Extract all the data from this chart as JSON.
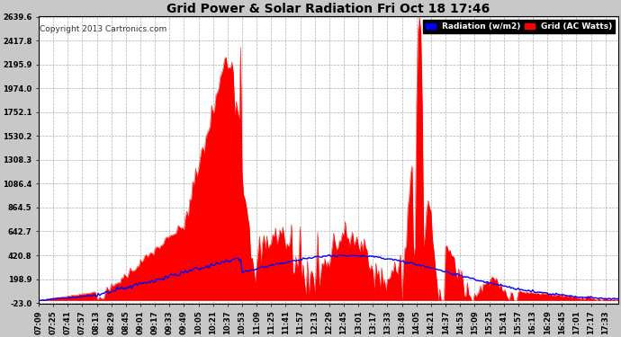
{
  "title": "Grid Power & Solar Radiation Fri Oct 18 17:46",
  "copyright": "Copyright 2013 Cartronics.com",
  "legend_radiation": "Radiation (w/m2)",
  "legend_grid": "Grid (AC Watts)",
  "yticks": [
    -23.0,
    198.9,
    420.8,
    642.7,
    864.5,
    1086.4,
    1308.3,
    1530.2,
    1752.1,
    1974.0,
    2195.9,
    2417.8,
    2639.6
  ],
  "ymin": -23.0,
  "ymax": 2639.6,
  "background_color": "#c8c8c8",
  "plot_bg_color": "#ffffff",
  "grid_color": "#999999",
  "red_fill_color": "#ff0000",
  "blue_line_color": "#0000ff",
  "title_color": "#000000",
  "xtick_labels": [
    "07:09",
    "07:25",
    "07:41",
    "07:57",
    "08:13",
    "08:29",
    "08:45",
    "09:01",
    "09:17",
    "09:33",
    "09:49",
    "10:05",
    "10:21",
    "10:37",
    "10:53",
    "11:09",
    "11:25",
    "11:41",
    "11:57",
    "12:13",
    "12:29",
    "12:45",
    "13:01",
    "13:17",
    "13:33",
    "13:49",
    "14:05",
    "14:21",
    "14:37",
    "14:53",
    "15:09",
    "15:25",
    "15:41",
    "15:57",
    "16:13",
    "16:29",
    "16:45",
    "17:01",
    "17:17",
    "17:33"
  ]
}
